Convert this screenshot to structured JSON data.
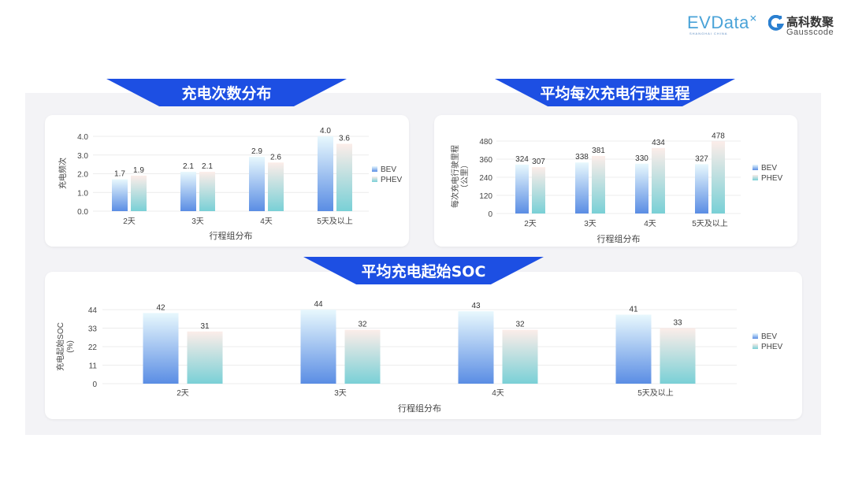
{
  "logos": {
    "evdata": "EVData",
    "evdata_sub": "SHANGHAI CHINA",
    "gauss_cn": "高科数聚",
    "gauss_en": "Gausscode"
  },
  "colors": {
    "banner": "#1d4fe3",
    "bev_top": "#e8f8fd",
    "bev_bottom": "#5a8de4",
    "phev_top": "#fcede9",
    "phev_bottom": "#79d0d6"
  },
  "chart_data": [
    {
      "type": "bar",
      "title": "充电次数分布",
      "categories": [
        "2天",
        "3天",
        "4天",
        "5天及以上"
      ],
      "series": [
        {
          "name": "BEV",
          "values": [
            1.7,
            2.1,
            2.9,
            4.0
          ]
        },
        {
          "name": "PHEV",
          "values": [
            1.9,
            2.1,
            2.6,
            3.6
          ]
        }
      ],
      "value_labels": [
        [
          "1.7",
          "2.1",
          "2.9",
          "4.0"
        ],
        [
          "1.9",
          "2.1",
          "2.6",
          "3.6"
        ]
      ],
      "xlabel": "行程组分布",
      "ylabel": [
        "充电频次"
      ],
      "ylim": [
        0,
        4
      ],
      "yticks": [
        "0.0",
        "1.0",
        "2.0",
        "3.0",
        "4.0"
      ],
      "grid": true,
      "legend": "right"
    },
    {
      "type": "bar",
      "title": "平均每次充电行驶里程",
      "categories": [
        "2天",
        "3天",
        "4天",
        "5天及以上"
      ],
      "series": [
        {
          "name": "BEV",
          "values": [
            324,
            338,
            330,
            327
          ]
        },
        {
          "name": "PHEV",
          "values": [
            307,
            381,
            434,
            478
          ]
        }
      ],
      "value_labels": [
        [
          "324",
          "338",
          "330",
          "327"
        ],
        [
          "307",
          "381",
          "434",
          "478"
        ]
      ],
      "xlabel": "行程组分布",
      "ylabel": [
        "每次充电行驶里程",
        "（公里）"
      ],
      "ylim": [
        0,
        480
      ],
      "yticks": [
        "0",
        "120",
        "240",
        "360",
        "480"
      ],
      "grid": true,
      "legend": "right"
    },
    {
      "type": "bar",
      "title": "平均充电起始SOC",
      "categories": [
        "2天",
        "3天",
        "4天",
        "5天及以上"
      ],
      "series": [
        {
          "name": "BEV",
          "values": [
            42,
            44,
            43,
            41
          ]
        },
        {
          "name": "PHEV",
          "values": [
            31,
            32,
            32,
            33
          ]
        }
      ],
      "value_labels": [
        [
          "42",
          "44",
          "43",
          "41"
        ],
        [
          "31",
          "32",
          "32",
          "33"
        ]
      ],
      "xlabel": "行程组分布",
      "ylabel": [
        "充电起始SOC",
        "(%)"
      ],
      "ylim": [
        0,
        44
      ],
      "yticks": [
        "0",
        "11",
        "22",
        "33",
        "44"
      ],
      "grid": true,
      "legend": "right"
    }
  ]
}
